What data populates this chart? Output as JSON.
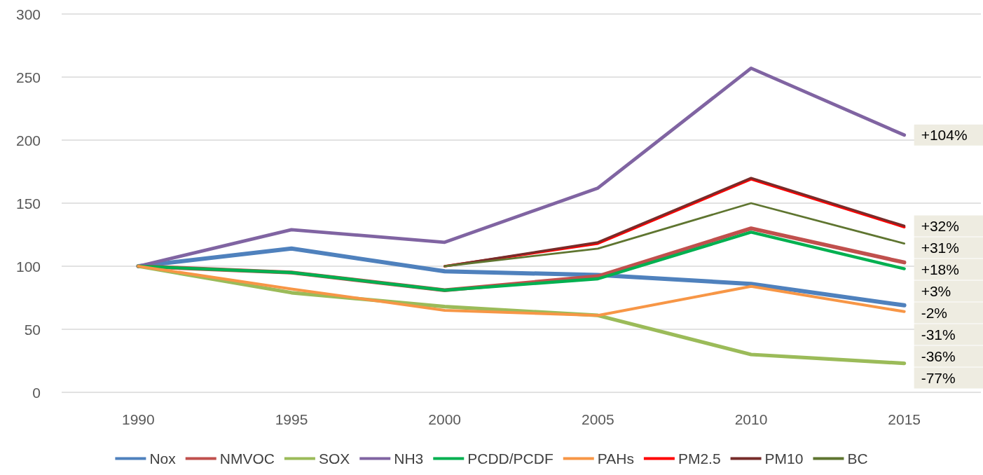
{
  "chart_data": {
    "type": "line",
    "categories": [
      "1990",
      "1995",
      "2000",
      "2005",
      "2010",
      "2015"
    ],
    "series": [
      {
        "name": "Nox",
        "color": "#4f81bd",
        "values": [
          100,
          114,
          96,
          93,
          86,
          69
        ]
      },
      {
        "name": "NMVOC",
        "color": "#c0504d",
        "values": [
          100,
          95,
          81,
          92,
          130,
          103
        ]
      },
      {
        "name": "SOX",
        "color": "#9bbb59",
        "values": [
          100,
          79,
          68,
          61,
          30,
          23
        ]
      },
      {
        "name": "NH3",
        "color": "#8064a2",
        "values": [
          100,
          129,
          119,
          162,
          257,
          204
        ]
      },
      {
        "name": "PCDD/PCDF",
        "color": "#00b050",
        "values": [
          100,
          95,
          81,
          90,
          127,
          98
        ]
      },
      {
        "name": "PAHs",
        "color": "#f79646",
        "values": [
          100,
          82,
          65,
          61,
          84,
          64
        ]
      },
      {
        "name": "PM2.5",
        "color": "#ff0000",
        "values": [
          null,
          null,
          100,
          118,
          169,
          131
        ]
      },
      {
        "name": "PM10",
        "color": "#772c2a",
        "values": [
          null,
          null,
          100,
          119,
          170,
          132
        ]
      },
      {
        "name": "BC",
        "color": "#5f7530",
        "values": [
          null,
          null,
          100,
          114,
          150,
          118
        ]
      }
    ],
    "ylim": [
      0,
      300
    ],
    "yticks": [
      0,
      50,
      100,
      150,
      200,
      250,
      300
    ],
    "grid": "y",
    "legend": "bottom",
    "marker": "none",
    "line_style": "solid",
    "annotations": [
      {
        "text": "+104%",
        "x": "2015",
        "y": 204
      },
      {
        "text": "+32%",
        "x": "2015",
        "y": 132
      },
      {
        "text": "+31%",
        "x": "2015",
        "y": 131
      },
      {
        "text": "+18%",
        "x": "2015",
        "y": 118
      },
      {
        "text": "+3%",
        "x": "2015",
        "y": 103
      },
      {
        "text": "-2%",
        "x": "2015",
        "y": 98
      },
      {
        "text": "-31%",
        "x": "2015",
        "y": 69
      },
      {
        "text": "-36%",
        "x": "2015",
        "y": 64
      },
      {
        "text": "-77%",
        "x": "2015",
        "y": 23
      }
    ]
  }
}
